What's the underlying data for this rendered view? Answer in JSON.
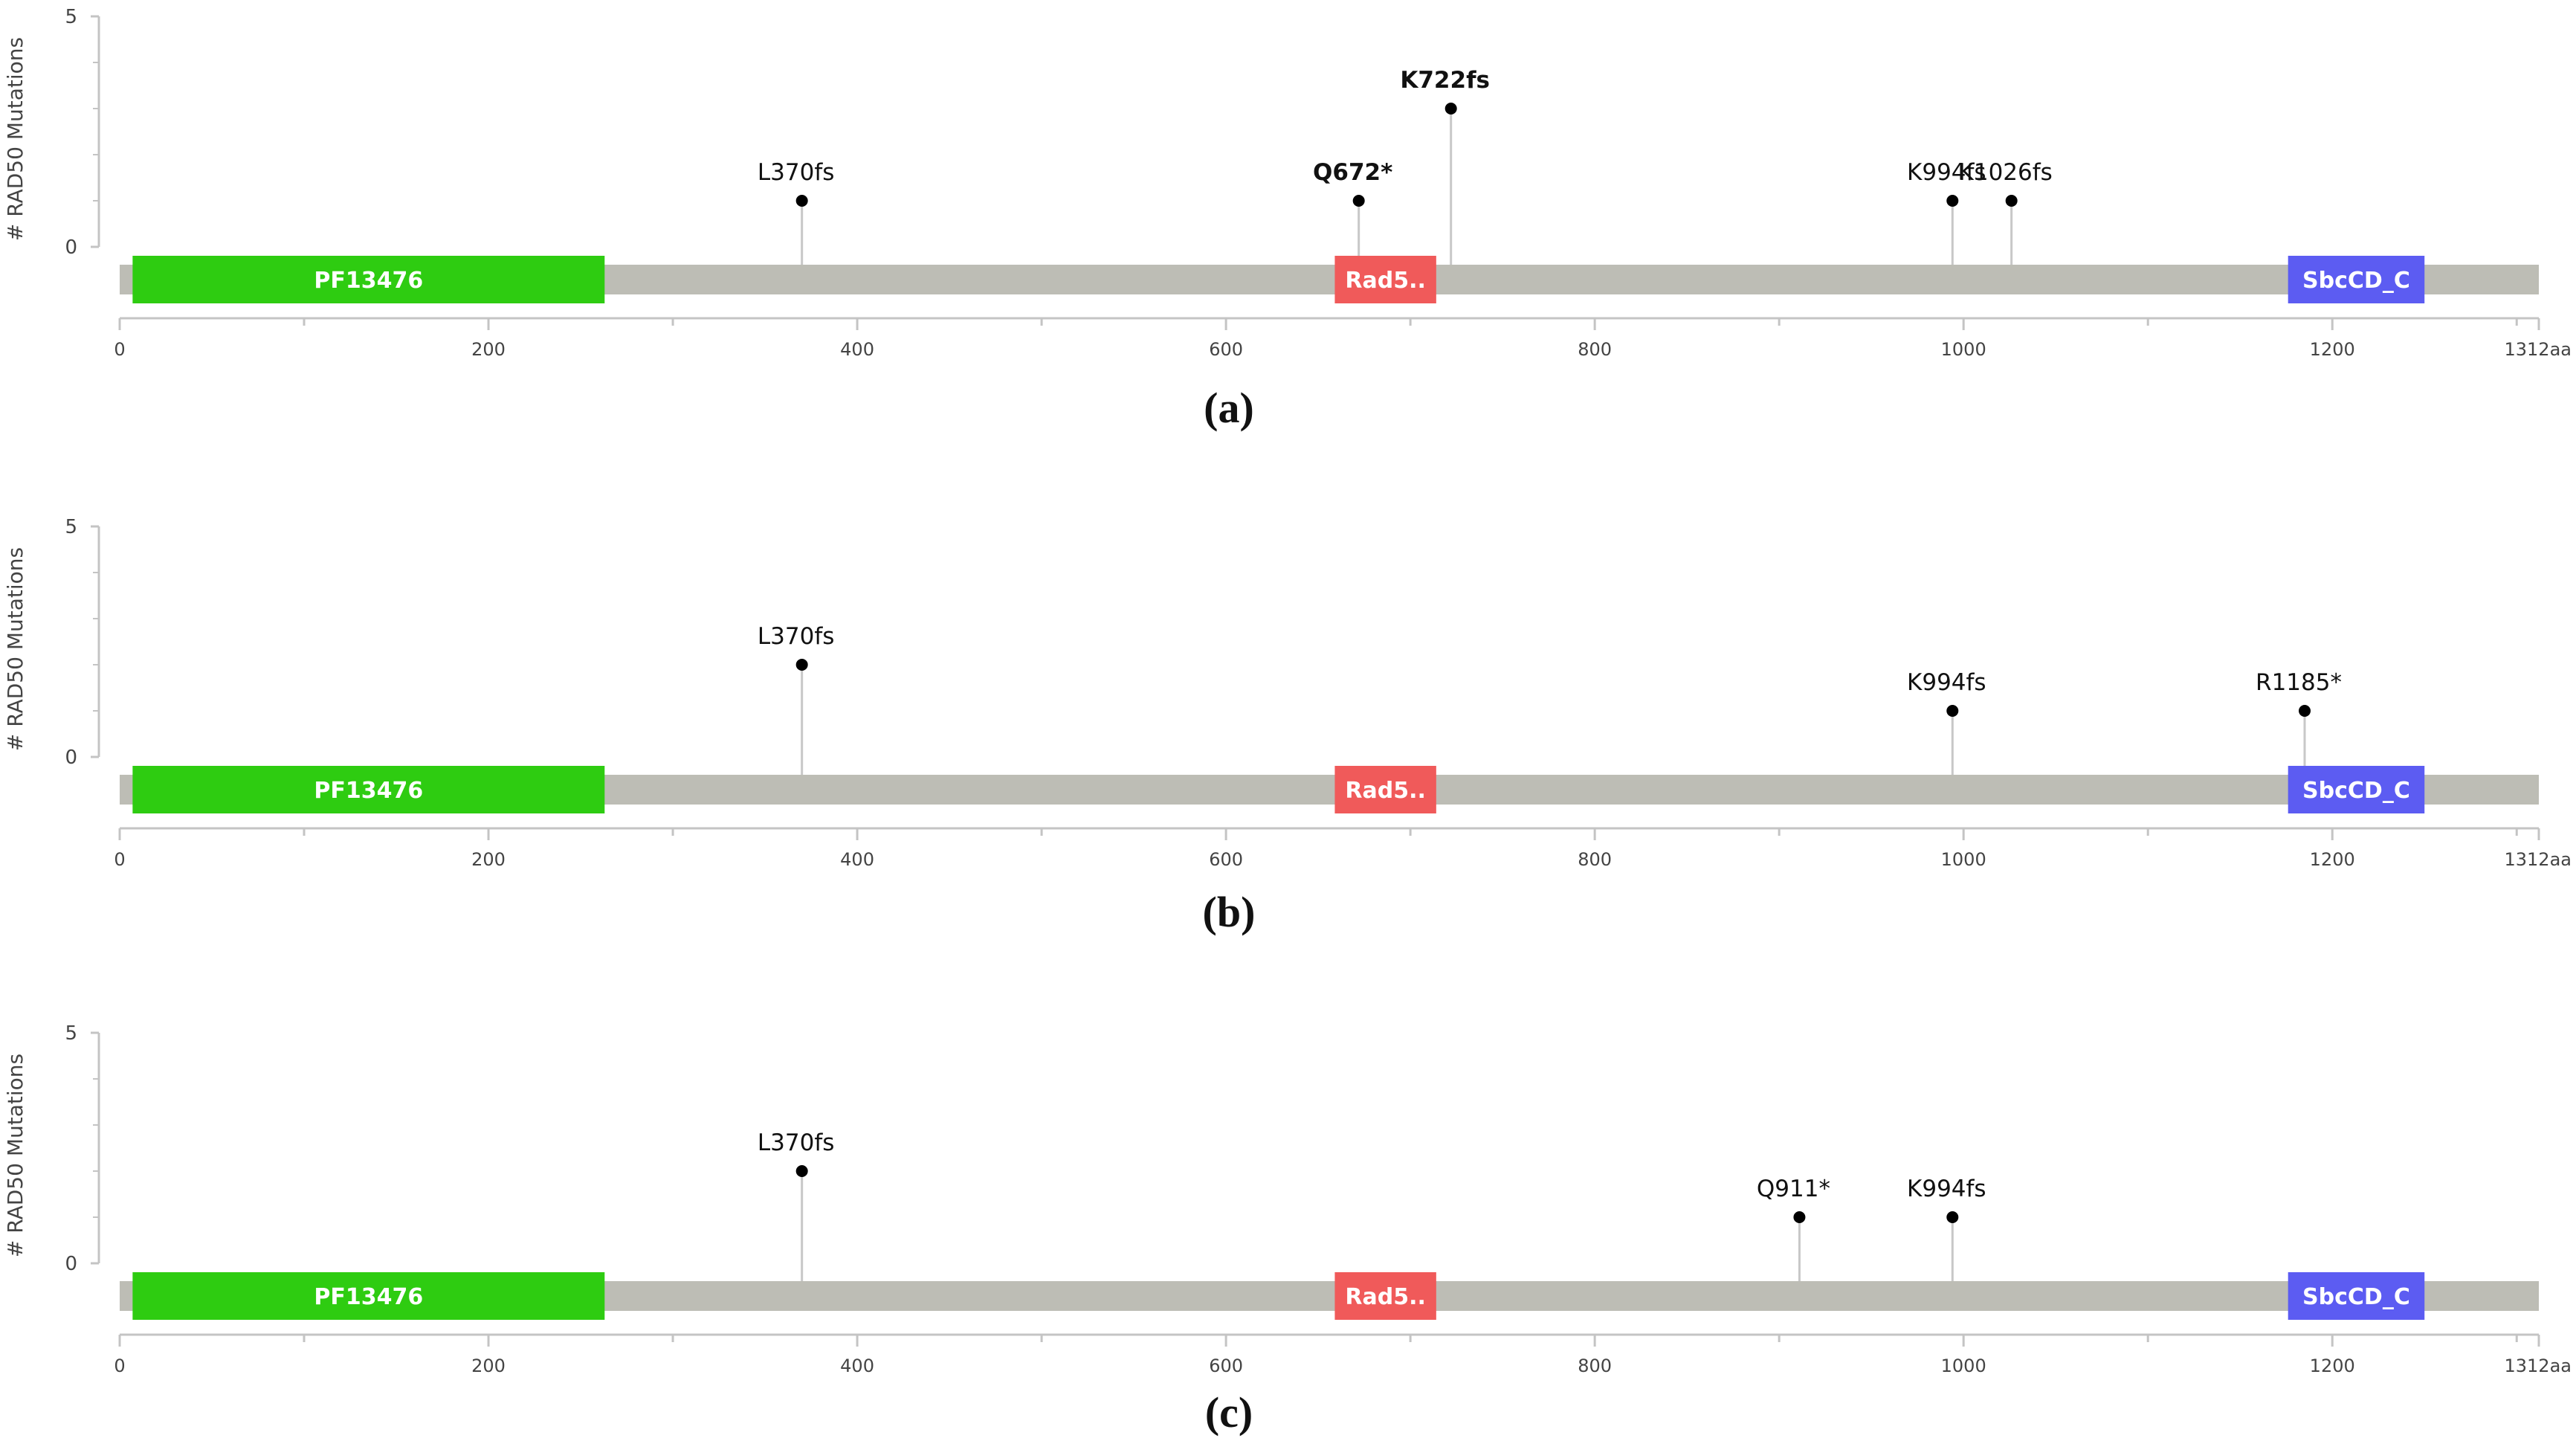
{
  "colors": {
    "backbone": "#bdbdb5",
    "axis": "#c4c4c4",
    "stem": "#c8c8c8",
    "point": "#000000",
    "label": "#111111",
    "tick_label": "#444444"
  },
  "chart_data": [
    {
      "type": "lollipop",
      "caption": "(a)",
      "ylabel": "# RAD50 Mutations",
      "ylim": [
        0,
        5
      ],
      "y_ticks": [
        "0",
        "5"
      ],
      "x_range": [
        0,
        1312
      ],
      "x_ticks": [
        "0",
        "200",
        "400",
        "600",
        "800",
        "1000",
        "1200"
      ],
      "x_end_label": "1312aa",
      "domains": [
        {
          "name": "PF13476",
          "start": 7,
          "end": 263,
          "color": "#2ecc11"
        },
        {
          "name": "Rad5..",
          "start": 659,
          "end": 714,
          "color": "#f05a5a"
        },
        {
          "name": "SbcCD_C",
          "start": 1176,
          "end": 1250,
          "color": "#5c5cf2"
        }
      ],
      "mutations": [
        {
          "label": "L370fs",
          "position": 370,
          "count": 1,
          "bold": false
        },
        {
          "label": "Q672*",
          "position": 672,
          "count": 1,
          "bold": true
        },
        {
          "label": "K722fs",
          "position": 722,
          "count": 3,
          "bold": true
        },
        {
          "label": "K994fs",
          "position": 994,
          "count": 1,
          "bold": false
        },
        {
          "label": "K1026fs",
          "position": 1026,
          "count": 1,
          "bold": false
        }
      ]
    },
    {
      "type": "lollipop",
      "caption": "(b)",
      "ylabel": "# RAD50 Mutations",
      "ylim": [
        0,
        5
      ],
      "y_ticks": [
        "0",
        "5"
      ],
      "x_range": [
        0,
        1312
      ],
      "x_ticks": [
        "0",
        "200",
        "400",
        "600",
        "800",
        "1000",
        "1200"
      ],
      "x_end_label": "1312aa",
      "domains": [
        {
          "name": "PF13476",
          "start": 7,
          "end": 263,
          "color": "#2ecc11"
        },
        {
          "name": "Rad5..",
          "start": 659,
          "end": 714,
          "color": "#f05a5a"
        },
        {
          "name": "SbcCD_C",
          "start": 1176,
          "end": 1250,
          "color": "#5c5cf2"
        }
      ],
      "mutations": [
        {
          "label": "L370fs",
          "position": 370,
          "count": 2,
          "bold": false
        },
        {
          "label": "K994fs",
          "position": 994,
          "count": 1,
          "bold": false
        },
        {
          "label": "R1185*",
          "position": 1185,
          "count": 1,
          "bold": false
        }
      ]
    },
    {
      "type": "lollipop",
      "caption": "(c)",
      "ylabel": "# RAD50 Mutations",
      "ylim": [
        0,
        5
      ],
      "y_ticks": [
        "0",
        "5"
      ],
      "x_range": [
        0,
        1312
      ],
      "x_ticks": [
        "0",
        "200",
        "400",
        "600",
        "800",
        "1000",
        "1200"
      ],
      "x_end_label": "1312aa",
      "domains": [
        {
          "name": "PF13476",
          "start": 7,
          "end": 263,
          "color": "#2ecc11"
        },
        {
          "name": "Rad5..",
          "start": 659,
          "end": 714,
          "color": "#f05a5a"
        },
        {
          "name": "SbcCD_C",
          "start": 1176,
          "end": 1250,
          "color": "#5c5cf2"
        }
      ],
      "mutations": [
        {
          "label": "L370fs",
          "position": 370,
          "count": 2,
          "bold": false
        },
        {
          "label": "Q911*",
          "position": 911,
          "count": 1,
          "bold": false
        },
        {
          "label": "K994fs",
          "position": 994,
          "count": 1,
          "bold": false
        }
      ]
    }
  ]
}
